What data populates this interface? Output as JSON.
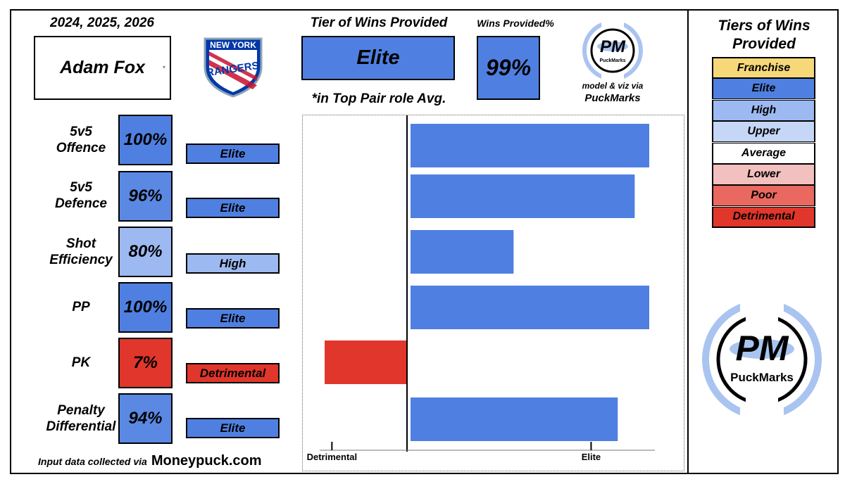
{
  "header": {
    "seasons": "2024, 2025, 2026",
    "player_name": "Adam Fox",
    "tier_title": "Tier of Wins Provided",
    "tier_value": "Elite",
    "role_note": "*in Top Pair role Avg.",
    "wins_pct_title": "Wins Provided%",
    "wins_pct_value": "99%",
    "credit_line1": "model & viz via",
    "credit_line2": "PuckMarks"
  },
  "team_logo": {
    "line1": "NEW YORK",
    "line2": "RANGERS"
  },
  "brand": {
    "monogram": "PM",
    "name": "PuckMarks"
  },
  "metrics": [
    {
      "label_line1": "5v5",
      "label_line2": "Offence",
      "pct": "100%",
      "tier": "Elite"
    },
    {
      "label_line1": "5v5",
      "label_line2": "Defence",
      "pct": "96%",
      "tier": "Elite"
    },
    {
      "label_line1": "Shot",
      "label_line2": "Efficiency",
      "pct": "80%",
      "tier": "High"
    },
    {
      "label_line1": "PP",
      "label_line2": "",
      "pct": "100%",
      "tier": "Elite"
    },
    {
      "label_line1": "PK",
      "label_line2": "",
      "pct": "7%",
      "tier": "Detrimental"
    },
    {
      "label_line1": "Penalty",
      "label_line2": "Differential",
      "pct": "94%",
      "tier": "Elite"
    }
  ],
  "footer": {
    "source_prefix": "Input data collected via",
    "source_site": "Moneypuck.com"
  },
  "legend": {
    "title_line1": "Tiers of Wins",
    "title_line2": "Provided",
    "items": [
      {
        "label": "Franchise",
        "color": "#f6d878"
      },
      {
        "label": "Elite",
        "color": "#4f80e1"
      },
      {
        "label": "High",
        "color": "#9db9f1"
      },
      {
        "label": "Upper",
        "color": "#c6d6f7"
      },
      {
        "label": "Average",
        "color": "#ffffff"
      },
      {
        "label": "Lower",
        "color": "#f2c0be"
      },
      {
        "label": "Poor",
        "color": "#e9685f"
      },
      {
        "label": "Detrimental",
        "color": "#e1362b"
      }
    ]
  },
  "colors": {
    "elite": "#4f80e1",
    "high": "#9db9f1",
    "detrimental": "#e1362b"
  },
  "chart_data": {
    "type": "bar",
    "orientation": "horizontal",
    "categories": [
      "5v5 Offence",
      "5v5 Defence",
      "Shot Efficiency",
      "PP",
      "PK",
      "Penalty Differential"
    ],
    "values": [
      100,
      96,
      80,
      100,
      7,
      94
    ],
    "bar_extent": [
      1.0,
      0.94,
      0.44,
      1.0,
      -0.34,
      0.87
    ],
    "xlim": [
      -0.34,
      1.0
    ],
    "ticks": [
      {
        "label": "Detrimental",
        "value": -0.31
      },
      {
        "label": "Elite",
        "value": 0.76
      }
    ],
    "xlabel": "",
    "ylabel": "",
    "grid": false
  }
}
